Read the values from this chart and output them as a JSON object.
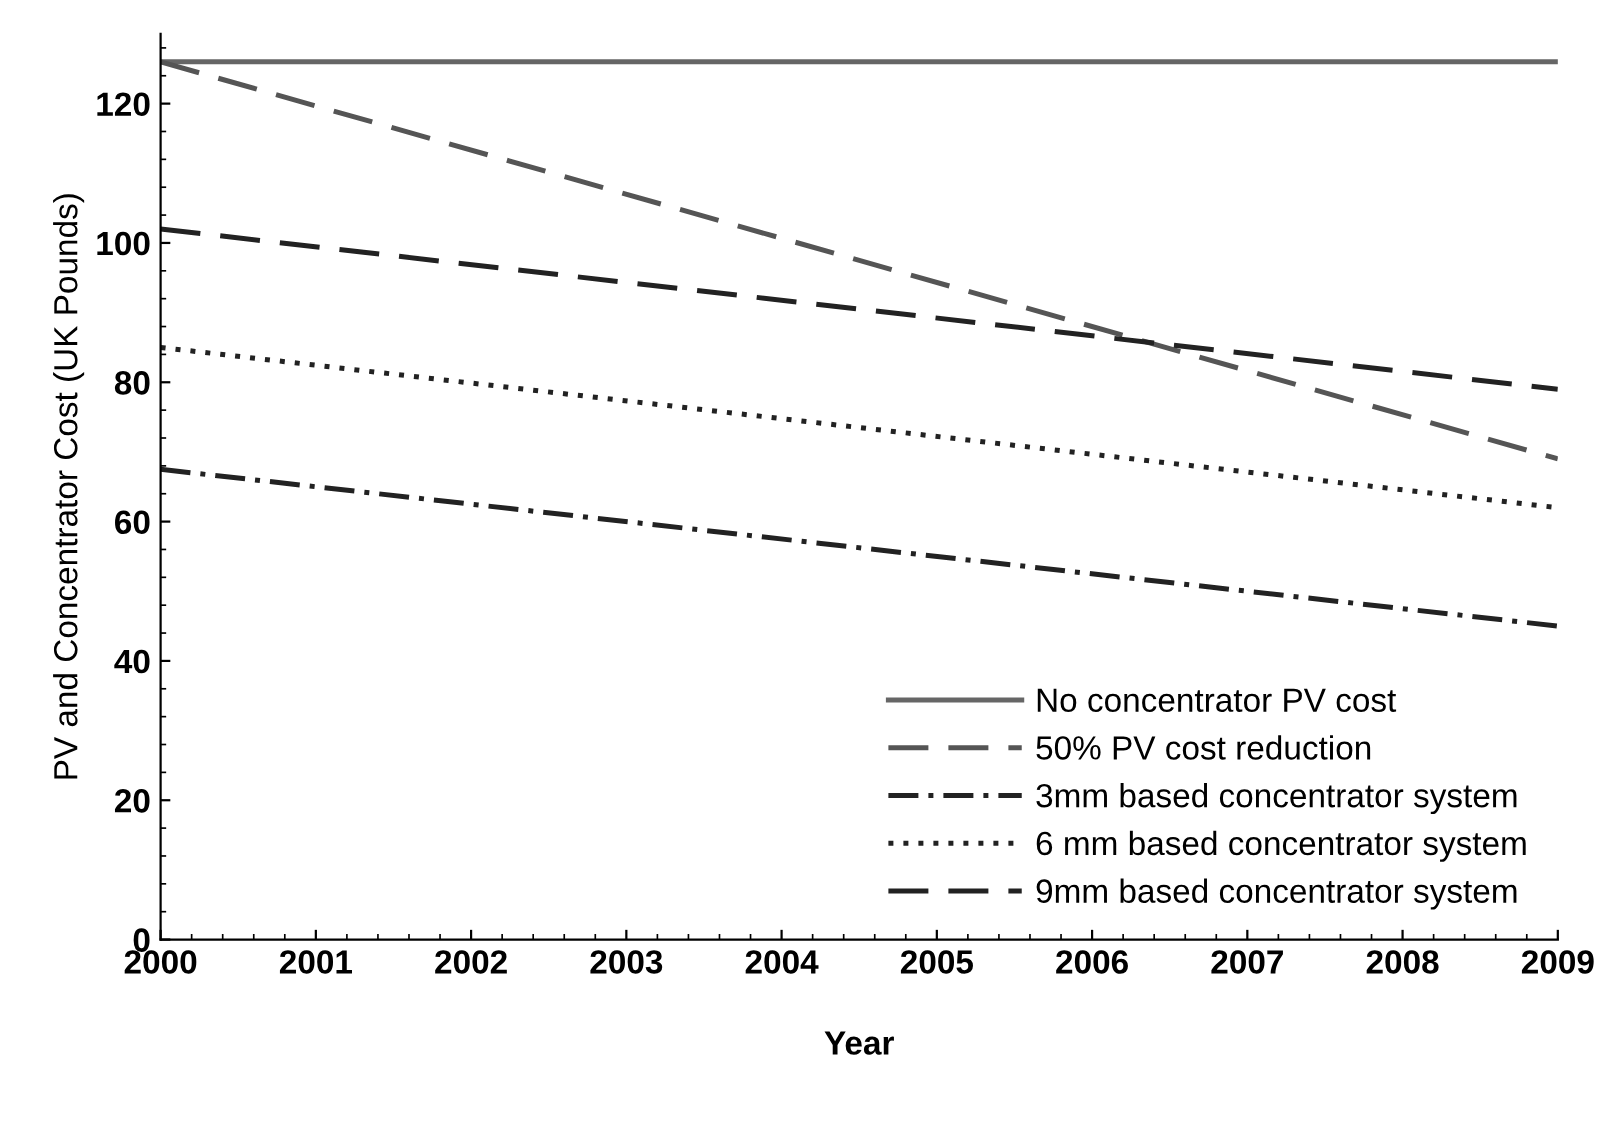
{
  "chart_data": {
    "type": "line",
    "xlabel": "Year",
    "ylabel": "PV and Concentrator Cost (UK Pounds)",
    "x": [
      2000,
      2009
    ],
    "series": [
      {
        "name": "No concentrator PV cost",
        "color": "#666666",
        "line_style": "solid",
        "values": [
          126,
          126
        ]
      },
      {
        "name": "50% PV cost reduction",
        "color": "#555555",
        "line_style": "dashed",
        "values": [
          126,
          69
        ]
      },
      {
        "name": "3mm based concentrator system",
        "color": "#222222",
        "line_style": "dashdot",
        "values": [
          67.5,
          45
        ]
      },
      {
        "name": "6 mm based concentrator system",
        "color": "#222222",
        "line_style": "dotted",
        "values": [
          85,
          62
        ]
      },
      {
        "name": "9mm based concentrator system",
        "color": "#222222",
        "line_style": "dashed",
        "values": [
          102,
          79
        ]
      }
    ],
    "xlim": [
      2000,
      2009
    ],
    "xticks": [
      2000,
      2001,
      2002,
      2003,
      2004,
      2005,
      2006,
      2007,
      2008,
      2009
    ],
    "ylim": [
      0,
      130
    ],
    "yticks": [
      0,
      20,
      40,
      60,
      80,
      100,
      120
    ],
    "grid": false,
    "legend": "bottom right"
  }
}
